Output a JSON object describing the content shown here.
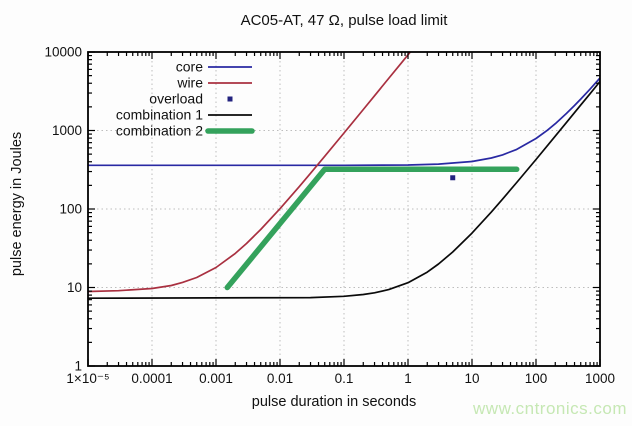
{
  "header": {
    "title": "AC05-AT, 47 Ω, pulse load limit"
  },
  "watermark": {
    "text": "www.cntronics.com",
    "color": "#c6e8b4"
  },
  "chart_data": {
    "type": "line",
    "title": "AC05-AT, 47 Ω, pulse load limit",
    "xlabel": "pulse duration in seconds",
    "ylabel": "pulse energy in Joules",
    "x_scale": "log",
    "y_scale": "log",
    "xlim": [
      1e-05,
      1000
    ],
    "ylim": [
      1,
      10000
    ],
    "x_tick_values": [
      1e-05,
      0.0001,
      0.001,
      0.01,
      0.1,
      1,
      10,
      100,
      1000
    ],
    "x_tick_labels": [
      "1×10⁻⁵",
      "0.0001",
      "0.001",
      "0.01",
      "0.1",
      "1",
      "10",
      "100",
      "1000"
    ],
    "y_tick_values": [
      1,
      10,
      100,
      1000,
      10000
    ],
    "y_tick_labels": [
      "1",
      "10",
      "100",
      "1000",
      "10000"
    ],
    "grid": {
      "show": true,
      "style": "dotted",
      "color": "#bdbdbd",
      "x_values": [
        0.0001,
        0.001,
        0.01,
        0.1,
        1,
        10,
        100
      ],
      "y_values": [
        10,
        100,
        1000
      ]
    },
    "axis_color": "#000000",
    "legend": {
      "position": "top-left",
      "entries": [
        "core",
        "wire",
        "overload",
        "combination 1",
        "combination 2"
      ]
    },
    "series": [
      {
        "name": "core",
        "kind": "line",
        "color": "#2929a3",
        "width": 1.7,
        "points": [
          [
            1e-05,
            360
          ],
          [
            0.1,
            360
          ],
          [
            1,
            364
          ],
          [
            3,
            373
          ],
          [
            10,
            403
          ],
          [
            20,
            446
          ],
          [
            30,
            489
          ],
          [
            50,
            575
          ],
          [
            100,
            790
          ],
          [
            150,
            1005
          ],
          [
            200,
            1220
          ],
          [
            300,
            1650
          ],
          [
            400,
            2080
          ],
          [
            500,
            2510
          ],
          [
            700,
            3370
          ],
          [
            1000,
            4660
          ]
        ]
      },
      {
        "name": "wire",
        "kind": "line",
        "color": "#a93040",
        "width": 1.7,
        "points": [
          [
            1e-05,
            8.9
          ],
          [
            3e-05,
            9.1
          ],
          [
            0.0001,
            9.7
          ],
          [
            0.0002,
            10.6
          ],
          [
            0.0003,
            11.6
          ],
          [
            0.0005,
            13.4
          ],
          [
            0.001,
            18.0
          ],
          [
            0.002,
            27.2
          ],
          [
            0.003,
            36.4
          ],
          [
            0.005,
            54.8
          ],
          [
            0.01,
            100.8
          ],
          [
            0.02,
            192.8
          ],
          [
            0.03,
            284.8
          ],
          [
            0.05,
            468.8
          ],
          [
            0.1,
            928.8
          ],
          [
            0.2,
            1848.8
          ],
          [
            0.3,
            2768.8
          ],
          [
            0.5,
            4608.8
          ],
          [
            0.8,
            7368.8
          ],
          [
            1.0,
            9208.8
          ],
          [
            1.086,
            10000
          ]
        ]
      },
      {
        "name": "overload",
        "kind": "scatter",
        "color": "#23237f",
        "marker": "square",
        "size": 5,
        "points": [
          [
            5,
            250
          ]
        ]
      },
      {
        "name": "combination 1",
        "kind": "line",
        "color": "#0a0a0a",
        "width": 1.7,
        "points": [
          [
            1e-05,
            7.3
          ],
          [
            0.03,
            7.43
          ],
          [
            0.1,
            7.72
          ],
          [
            0.2,
            8.14
          ],
          [
            0.3,
            8.56
          ],
          [
            0.5,
            9.4
          ],
          [
            1,
            11.5
          ],
          [
            2,
            15.7
          ],
          [
            3,
            19.9
          ],
          [
            5,
            28.3
          ],
          [
            10,
            49.3
          ],
          [
            20,
            91.3
          ],
          [
            30,
            133.3
          ],
          [
            50,
            217.3
          ],
          [
            100,
            427.3
          ],
          [
            200,
            847.3
          ],
          [
            300,
            1267
          ],
          [
            500,
            2107
          ],
          [
            700,
            2947
          ],
          [
            1000,
            4207
          ]
        ]
      },
      {
        "name": "combination 2",
        "kind": "line",
        "color": "#34a25c",
        "width": 5.5,
        "linecap": "round",
        "points": [
          [
            0.0015,
            10
          ],
          [
            0.05,
            320
          ],
          [
            50,
            320
          ]
        ]
      }
    ]
  }
}
